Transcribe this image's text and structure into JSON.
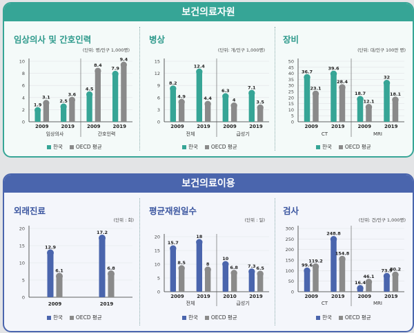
{
  "colors": {
    "teal": "#36a596",
    "gray": "#8a8a8a",
    "blue": "#4a65ad",
    "blue_light": "#6f89c7"
  },
  "sections": [
    {
      "title": "보건의료자원"
    },
    {
      "title": "보건의료이용"
    }
  ],
  "legend": {
    "korea": "한국",
    "oecd": "OECD 평균"
  },
  "panels": [
    {
      "title": "임상의사 및 간호인력",
      "unit": "(단위: 명/인구 1,000명)"
    },
    {
      "title": "병상",
      "unit": "(단위: 개/인구 1,000명)"
    },
    {
      "title": "장비",
      "unit": "(단위: 대/인구 100만 명)"
    },
    {
      "title": "외래진료",
      "unit": "(단위 : 회)"
    },
    {
      "title": "평균재원일수",
      "unit": "(단위 : 일)"
    },
    {
      "title": "검사",
      "unit": "(단위: 건/인구 1,000명)"
    }
  ],
  "chart_data": [
    {
      "type": "bar",
      "title": "임상의사 및 간호인력",
      "unit": "(단위: 명/인구 1,000명)",
      "groups": [
        "임상의사",
        "간호인력"
      ],
      "categories": [
        "2009",
        "2019",
        "2009",
        "2019"
      ],
      "series": [
        {
          "name": "한국",
          "values": [
            1.9,
            2.5,
            4.5,
            7.9
          ]
        },
        {
          "name": "OECD 평균",
          "values": [
            3.1,
            3.6,
            8.4,
            9.4
          ]
        }
      ],
      "yticks": [
        0,
        2,
        4,
        6,
        8,
        10
      ],
      "ylim": [
        0,
        10
      ]
    },
    {
      "type": "bar",
      "title": "병상",
      "unit": "(단위: 개/인구 1,000명)",
      "groups": [
        "전체",
        "급성기"
      ],
      "categories": [
        "2009",
        "2019",
        "2009",
        "2019"
      ],
      "series": [
        {
          "name": "한국",
          "values": [
            8.2,
            12.4,
            6.3,
            7.1
          ]
        },
        {
          "name": "OECD 평균",
          "values": [
            4.9,
            4.4,
            4.0,
            3.5
          ]
        }
      ],
      "yticks": [
        0,
        3,
        6,
        9,
        12,
        15
      ],
      "ylim": [
        0,
        15
      ]
    },
    {
      "type": "bar",
      "title": "장비",
      "unit": "(단위: 대/인구 100만 명)",
      "groups": [
        "CT",
        "MRI"
      ],
      "categories": [
        "2009",
        "2019",
        "2009",
        "2019"
      ],
      "series": [
        {
          "name": "한국",
          "values": [
            36.7,
            39.6,
            18.7,
            32.0
          ]
        },
        {
          "name": "OECD 평균",
          "values": [
            23.1,
            28.4,
            12.1,
            18.1
          ]
        }
      ],
      "yticks": [
        0,
        5,
        10,
        15,
        20,
        25,
        30,
        35,
        40,
        45,
        50
      ],
      "ylim": [
        0,
        50
      ]
    },
    {
      "type": "bar",
      "title": "외래진료",
      "unit": "(단위 : 회)",
      "groups": [],
      "categories": [
        "2009",
        "2019"
      ],
      "series": [
        {
          "name": "한국",
          "values": [
            12.9,
            17.2
          ]
        },
        {
          "name": "OECD 평균",
          "values": [
            6.1,
            6.8
          ]
        }
      ],
      "yticks": [
        0,
        5,
        10,
        15,
        20
      ],
      "ylim": [
        0,
        20
      ]
    },
    {
      "type": "bar",
      "title": "평균재원일수",
      "unit": "(단위 : 일)",
      "groups": [
        "전체",
        "급성기"
      ],
      "categories": [
        "2009",
        "2019",
        "2010",
        "2019"
      ],
      "series": [
        {
          "name": "한국",
          "values": [
            15.7,
            18.0,
            10.0,
            7.3
          ]
        },
        {
          "name": "OECD 평균",
          "values": [
            8.5,
            8.0,
            6.8,
            6.5
          ]
        }
      ],
      "yticks": [
        0,
        5,
        10,
        15,
        20
      ],
      "ylim": [
        0,
        20
      ]
    },
    {
      "type": "bar",
      "title": "검사",
      "unit": "(단위: 건/인구 1,000명)",
      "groups": [
        "CT",
        "MRI"
      ],
      "categories": [
        "2009",
        "2019",
        "2009",
        "2019"
      ],
      "series": [
        {
          "name": "한국",
          "values": [
            99.6,
            248.8,
            16.4,
            73.9
          ]
        },
        {
          "name": "OECD 평균",
          "values": [
            119.2,
            154.8,
            46.1,
            80.2
          ]
        }
      ],
      "yticks": [
        0,
        50,
        100,
        150,
        200,
        250,
        300
      ],
      "ylim": [
        0,
        300
      ]
    }
  ]
}
